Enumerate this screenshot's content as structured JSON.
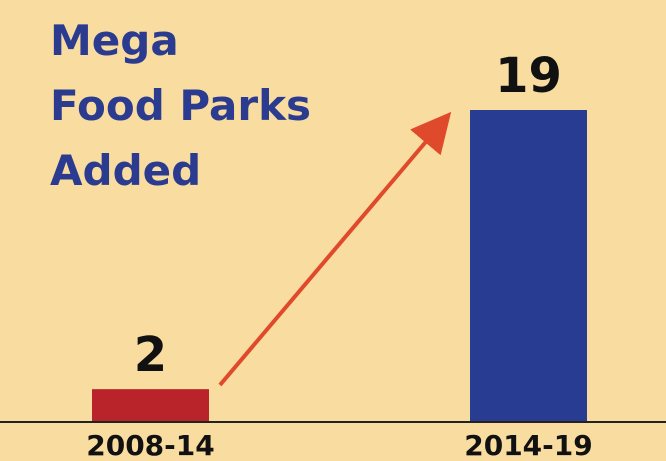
{
  "chart_data": {
    "type": "bar",
    "title_lines": [
      "Mega",
      "Food Parks",
      "Added"
    ],
    "categories": [
      "2008-14",
      "2014-19"
    ],
    "values": [
      2,
      19
    ],
    "value_labels": [
      "2",
      "19"
    ],
    "xlabel": "",
    "ylabel": "",
    "ylim": [
      0,
      19
    ],
    "grid": false,
    "annotations": [
      "arrow from 2008-14 bar to 2014-19 bar indicating increase"
    ]
  },
  "colors": {
    "background": "#f9dc9f",
    "title": "#2b3b8f",
    "bar_2008_14": "#b9242a",
    "bar_2014_19": "#283c92",
    "arrow": "#e04a2c",
    "axis": "#222222",
    "text": "#111111"
  }
}
